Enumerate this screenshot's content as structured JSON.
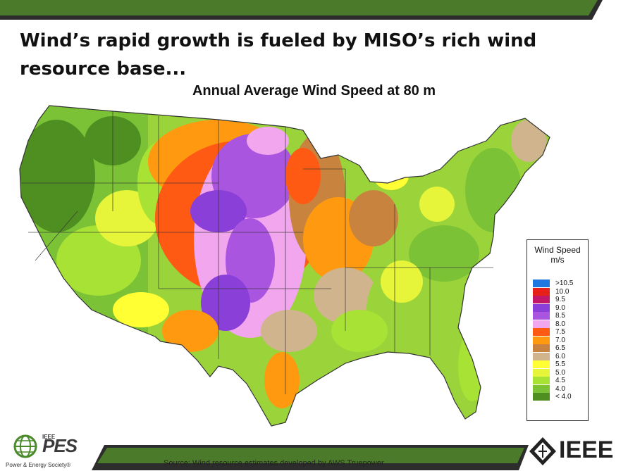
{
  "slide": {
    "title": "Wind’s rapid growth is fueled by MISO’s rich wind resource base...",
    "map_title": "Annual Average Wind Speed at 80 m",
    "source": "Source: Wind resource estimates developed by AWS Truepower"
  },
  "legend": {
    "title": "Wind Speed",
    "unit": "m/s",
    "entries": [
      {
        "label": ">10.5",
        "color": "#1f78e0"
      },
      {
        "label": "10.0",
        "color": "#e8201a"
      },
      {
        "label": "9.5",
        "color": "#c2186a"
      },
      {
        "label": "9.0",
        "color": "#8a3fd8"
      },
      {
        "label": "8.5",
        "color": "#a955e0"
      },
      {
        "label": "8.0",
        "color": "#f2a6ee"
      },
      {
        "label": "7.5",
        "color": "#ff5a14"
      },
      {
        "label": "7.0",
        "color": "#ff9a10"
      },
      {
        "label": "6.5",
        "color": "#c8843e"
      },
      {
        "label": "6.0",
        "color": "#cfb48e"
      },
      {
        "label": "5.5",
        "color": "#ffff33"
      },
      {
        "label": "5.0",
        "color": "#e6f53a"
      },
      {
        "label": "4.5",
        "color": "#a8e234"
      },
      {
        "label": "4.0",
        "color": "#7cc236"
      },
      {
        "label": "< 4.0",
        "color": "#4f8f22"
      }
    ]
  },
  "logos": {
    "pes_text": "PES",
    "pes_ieee": "IEEE",
    "pes_sub": "Power & Energy Society®",
    "ieee_text": "IEEE"
  },
  "colors": {
    "band_green": "#4a7a2a",
    "band_dark": "#2d2d2d"
  }
}
